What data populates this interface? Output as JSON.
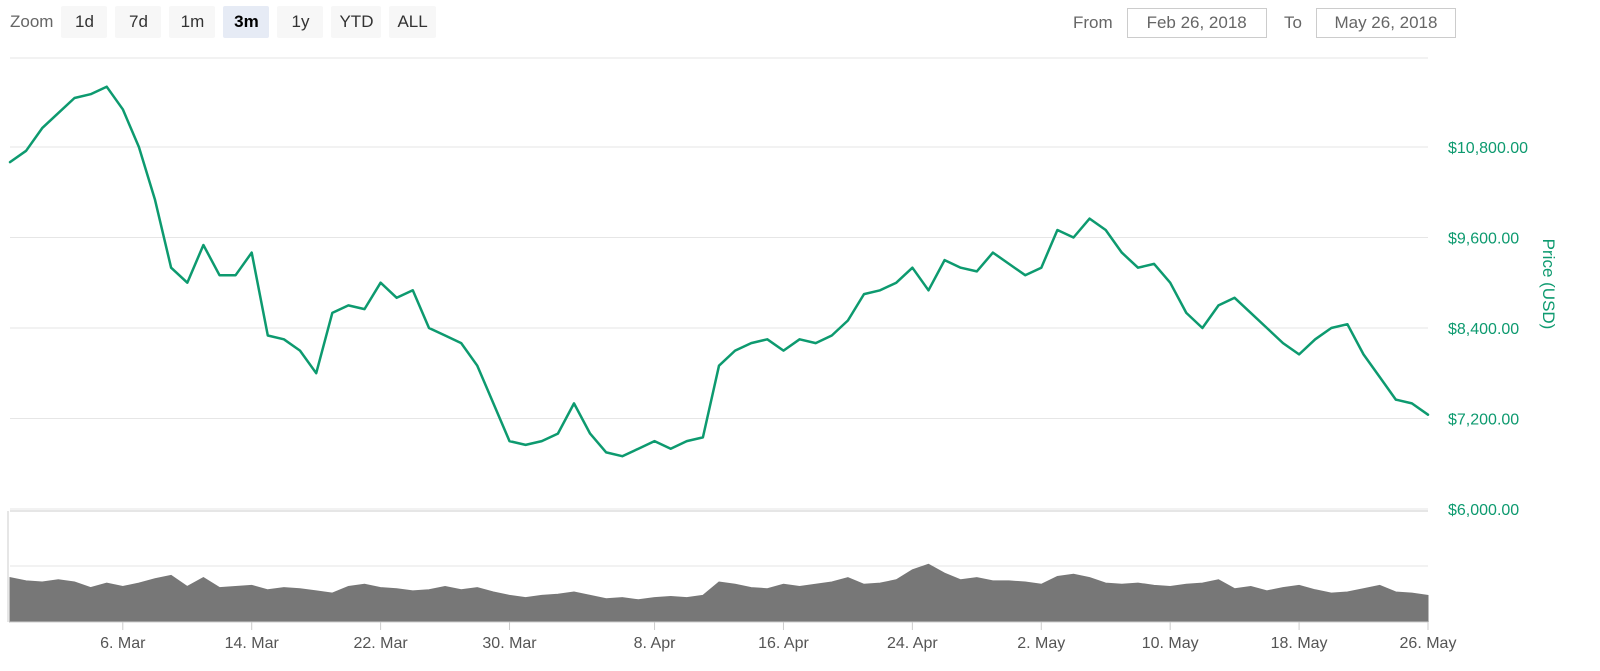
{
  "zoom": {
    "label": "Zoom",
    "buttons": [
      "1d",
      "7d",
      "1m",
      "3m",
      "1y",
      "YTD",
      "ALL"
    ],
    "selected": "3m"
  },
  "range": {
    "from_label": "From",
    "from_value": "Feb 26, 2018",
    "to_label": "To",
    "to_value": "May 26, 2018"
  },
  "colors": {
    "price_line": "#0d9a6f",
    "volume_fill": "#777777",
    "grid": "#e6e6e6"
  },
  "chart_data": {
    "type": "line",
    "ylabel": "Price (USD)",
    "y_ticks": [
      "$10,800.00",
      "$9,600.00",
      "$8,400.00",
      "$7,200.00",
      "$6,000.00"
    ],
    "y_tick_values": [
      10800,
      9600,
      8400,
      7200,
      6000
    ],
    "ylim": [
      6000,
      11980
    ],
    "x_tick_labels": [
      "6. Mar",
      "14. Mar",
      "22. Mar",
      "30. Mar",
      "8. Apr",
      "16. Apr",
      "24. Apr",
      "2. May",
      "10. May",
      "18. May",
      "26. May"
    ],
    "x_tick_dates": [
      "2018-03-06",
      "2018-03-14",
      "2018-03-22",
      "2018-03-30",
      "2018-04-08",
      "2018-04-16",
      "2018-04-24",
      "2018-05-02",
      "2018-05-10",
      "2018-05-18",
      "2018-05-26"
    ],
    "x_range": [
      "2018-02-27",
      "2018-05-26"
    ],
    "grid": true,
    "series": [
      {
        "name": "Price (USD)",
        "x": [
          "2018-02-27",
          "2018-02-28",
          "2018-03-01",
          "2018-03-02",
          "2018-03-03",
          "2018-03-04",
          "2018-03-05",
          "2018-03-06",
          "2018-03-07",
          "2018-03-08",
          "2018-03-09",
          "2018-03-10",
          "2018-03-11",
          "2018-03-12",
          "2018-03-13",
          "2018-03-14",
          "2018-03-15",
          "2018-03-16",
          "2018-03-17",
          "2018-03-18",
          "2018-03-19",
          "2018-03-20",
          "2018-03-21",
          "2018-03-22",
          "2018-03-23",
          "2018-03-24",
          "2018-03-25",
          "2018-03-26",
          "2018-03-27",
          "2018-03-28",
          "2018-03-29",
          "2018-03-30",
          "2018-03-31",
          "2018-04-01",
          "2018-04-02",
          "2018-04-03",
          "2018-04-04",
          "2018-04-05",
          "2018-04-06",
          "2018-04-07",
          "2018-04-08",
          "2018-04-09",
          "2018-04-10",
          "2018-04-11",
          "2018-04-12",
          "2018-04-13",
          "2018-04-14",
          "2018-04-15",
          "2018-04-16",
          "2018-04-17",
          "2018-04-18",
          "2018-04-19",
          "2018-04-20",
          "2018-04-21",
          "2018-04-22",
          "2018-04-23",
          "2018-04-24",
          "2018-04-25",
          "2018-04-26",
          "2018-04-27",
          "2018-04-28",
          "2018-04-29",
          "2018-04-30",
          "2018-05-01",
          "2018-05-02",
          "2018-05-03",
          "2018-05-04",
          "2018-05-05",
          "2018-05-06",
          "2018-05-07",
          "2018-05-08",
          "2018-05-09",
          "2018-05-10",
          "2018-05-11",
          "2018-05-12",
          "2018-05-13",
          "2018-05-14",
          "2018-05-15",
          "2018-05-16",
          "2018-05-17",
          "2018-05-18",
          "2018-05-19",
          "2018-05-20",
          "2018-05-21",
          "2018-05-22",
          "2018-05-23",
          "2018-05-24",
          "2018-05-25",
          "2018-05-26"
        ],
        "values": [
          10600,
          10750,
          11050,
          11250,
          11450,
          11500,
          11600,
          11300,
          10800,
          10100,
          9200,
          9000,
          9500,
          9100,
          9100,
          9400,
          8300,
          8250,
          8100,
          7800,
          8600,
          8700,
          8650,
          9000,
          8800,
          8900,
          8400,
          8300,
          8200,
          7900,
          7400,
          6900,
          6850,
          6900,
          7000,
          7400,
          7000,
          6750,
          6700,
          6800,
          6900,
          6800,
          6900,
          6950,
          7900,
          8100,
          8200,
          8250,
          8100,
          8250,
          8200,
          8300,
          8500,
          8850,
          8900,
          9000,
          9200,
          8900,
          9300,
          9200,
          9150,
          9400,
          9250,
          9100,
          9200,
          9700,
          9600,
          9850,
          9700,
          9400,
          9200,
          9250,
          9000,
          8600,
          8400,
          8700,
          8800,
          8600,
          8400,
          8200,
          8050,
          8250,
          8400,
          8450,
          8050,
          7750,
          7450,
          7400,
          7250
        ]
      }
    ],
    "volume": {
      "values": [
        40,
        37,
        36,
        38,
        36,
        31,
        35,
        32,
        35,
        39,
        42,
        32,
        40,
        31,
        32,
        33,
        29,
        31,
        30,
        28,
        26,
        32,
        34,
        31,
        30,
        28,
        29,
        32,
        29,
        31,
        27,
        24,
        22,
        24,
        25,
        27,
        24,
        21,
        22,
        20,
        22,
        23,
        22,
        24,
        36,
        34,
        31,
        30,
        34,
        32,
        34,
        36,
        40,
        34,
        35,
        38,
        47,
        52,
        44,
        38,
        40,
        37,
        37,
        36,
        34,
        41,
        43,
        40,
        35,
        34,
        35,
        33,
        32,
        34,
        35,
        38,
        30,
        32,
        28,
        31,
        33,
        29,
        26,
        27,
        30,
        33,
        27,
        26,
        24
      ],
      "max": 100
    }
  }
}
